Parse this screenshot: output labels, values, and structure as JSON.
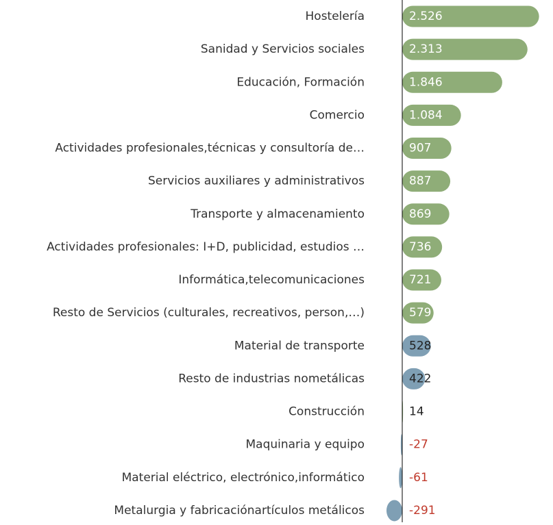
{
  "chart_data": {
    "type": "bar",
    "orientation": "horizontal",
    "categories": [
      "Hostelería",
      "Sanidad y Servicios sociales",
      "Educación, Formación",
      "Comercio",
      "Actividades profesionales,técnicas y consultoría de…",
      "Servicios auxiliares y administrativos",
      "Transporte y almacenamiento",
      "Actividades profesionales: I+D, publicidad, estudios …",
      "Informática,telecomunicaciones",
      "Resto de Servicios (culturales, recreativos, person,…)",
      "Material de transporte",
      "Resto de industrias nometálicas",
      "Construcción",
      "Maquinaria y equipo",
      "Material eléctrico, electrónico,informático",
      "Metalurgia y fabricaciónartículos metálicos"
    ],
    "values": [
      2526,
      2313,
      1846,
      1084,
      907,
      887,
      869,
      736,
      721,
      579,
      528,
      422,
      14,
      -27,
      -61,
      -291
    ],
    "value_labels": [
      "2.526",
      "2.313",
      "1.846",
      "1.084",
      "907",
      "887",
      "869",
      "736",
      "721",
      "579",
      "528",
      "422",
      "14",
      "-27",
      "-61",
      "-291"
    ],
    "colors": [
      "#8fad78",
      "#8fad78",
      "#8fad78",
      "#8fad78",
      "#8fad78",
      "#8fad78",
      "#8fad78",
      "#8fad78",
      "#8fad78",
      "#8fad78",
      "#7f9fb4",
      "#7f9fb4",
      "#8fad78",
      "#7f9fb4",
      "#7f9fb4",
      "#7f9fb4"
    ]
  }
}
